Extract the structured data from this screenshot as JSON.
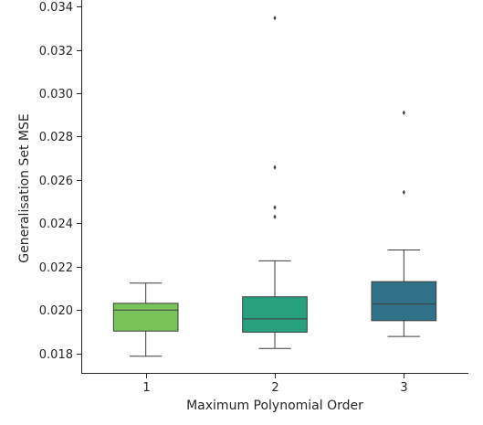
{
  "chart_data": {
    "type": "box",
    "title": "",
    "xlabel": "Maximum Polynomial Order",
    "ylabel": "Generalisation Set MSE",
    "categories": [
      "1",
      "2",
      "3"
    ],
    "ylim": [
      0.0171,
      0.0343
    ],
    "yticks": [
      "0.018",
      "0.020",
      "0.022",
      "0.024",
      "0.026",
      "0.028",
      "0.030",
      "0.032",
      "0.034"
    ],
    "boxes": [
      {
        "category": "1",
        "whisker_low": 0.01787,
        "q1": 0.01903,
        "median": 0.02,
        "q3": 0.02031,
        "whisker_high": 0.02124,
        "outliers": [],
        "color": "#7ac35a"
      },
      {
        "category": "2",
        "whisker_low": 0.01823,
        "q1": 0.01898,
        "median": 0.01959,
        "q3": 0.02061,
        "whisker_high": 0.02227,
        "outliers": [
          0.03347,
          0.02658,
          0.02473,
          0.0243
        ],
        "color": "#28a07d"
      },
      {
        "category": "3",
        "whisker_low": 0.01878,
        "q1": 0.01951,
        "median": 0.02028,
        "q3": 0.02131,
        "whisker_high": 0.02277,
        "outliers": [
          0.0291,
          0.02543
        ],
        "color": "#2e7189"
      }
    ],
    "grid": false,
    "legend": "none"
  }
}
